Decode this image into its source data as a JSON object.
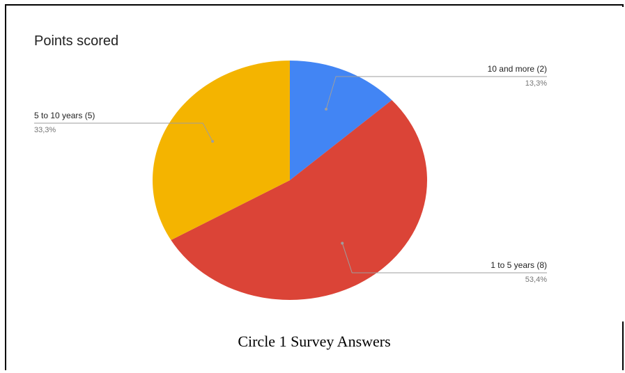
{
  "chart_data": {
    "type": "pie",
    "title": "Points scored",
    "slices": [
      {
        "label": "10 and more (2)",
        "value": 2,
        "percent": "13,3%",
        "color": "#4285F4"
      },
      {
        "label": "1 to 5 years (8)",
        "value": 8,
        "percent": "53,4%",
        "color": "#DB4437"
      },
      {
        "label": "5 to 10 years (5)",
        "value": 5,
        "percent": "33,3%",
        "color": "#F4B400"
      }
    ],
    "start_angle_deg": 0,
    "direction": "clockwise"
  },
  "caption": "Circle 1 Survey Answers"
}
